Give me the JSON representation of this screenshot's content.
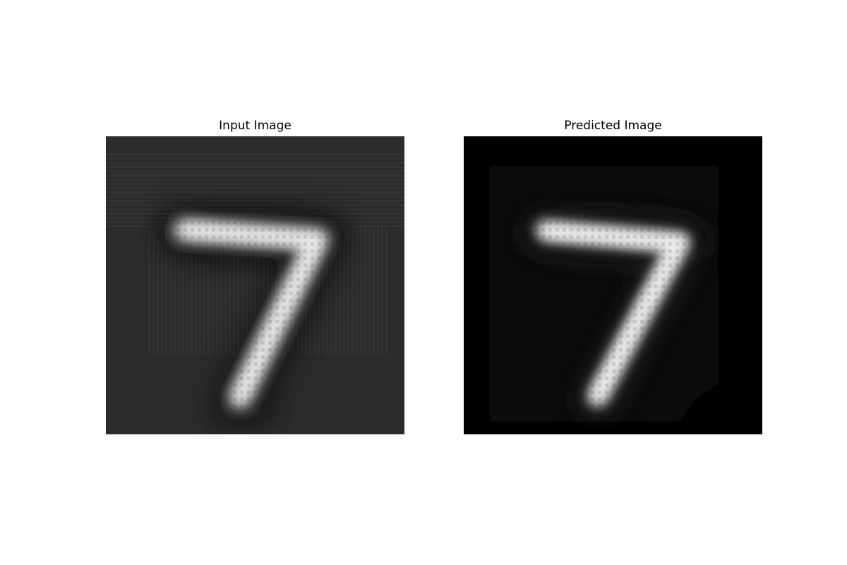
{
  "panels": [
    {
      "title": "Input Image",
      "subject": "handwritten digit seven, blurry reconstruction with ringing artifacts on dark gray background"
    },
    {
      "title": "Predicted Image",
      "subject": "handwritten digit seven, cleaner reconstruction on black background"
    }
  ],
  "colors": {
    "figure_background": "#ffffff",
    "input_background": "#2b2b2b",
    "predicted_background": "#000000",
    "predicted_inner_tint": "#0b0a0a",
    "stroke": "#e8e8e8"
  }
}
